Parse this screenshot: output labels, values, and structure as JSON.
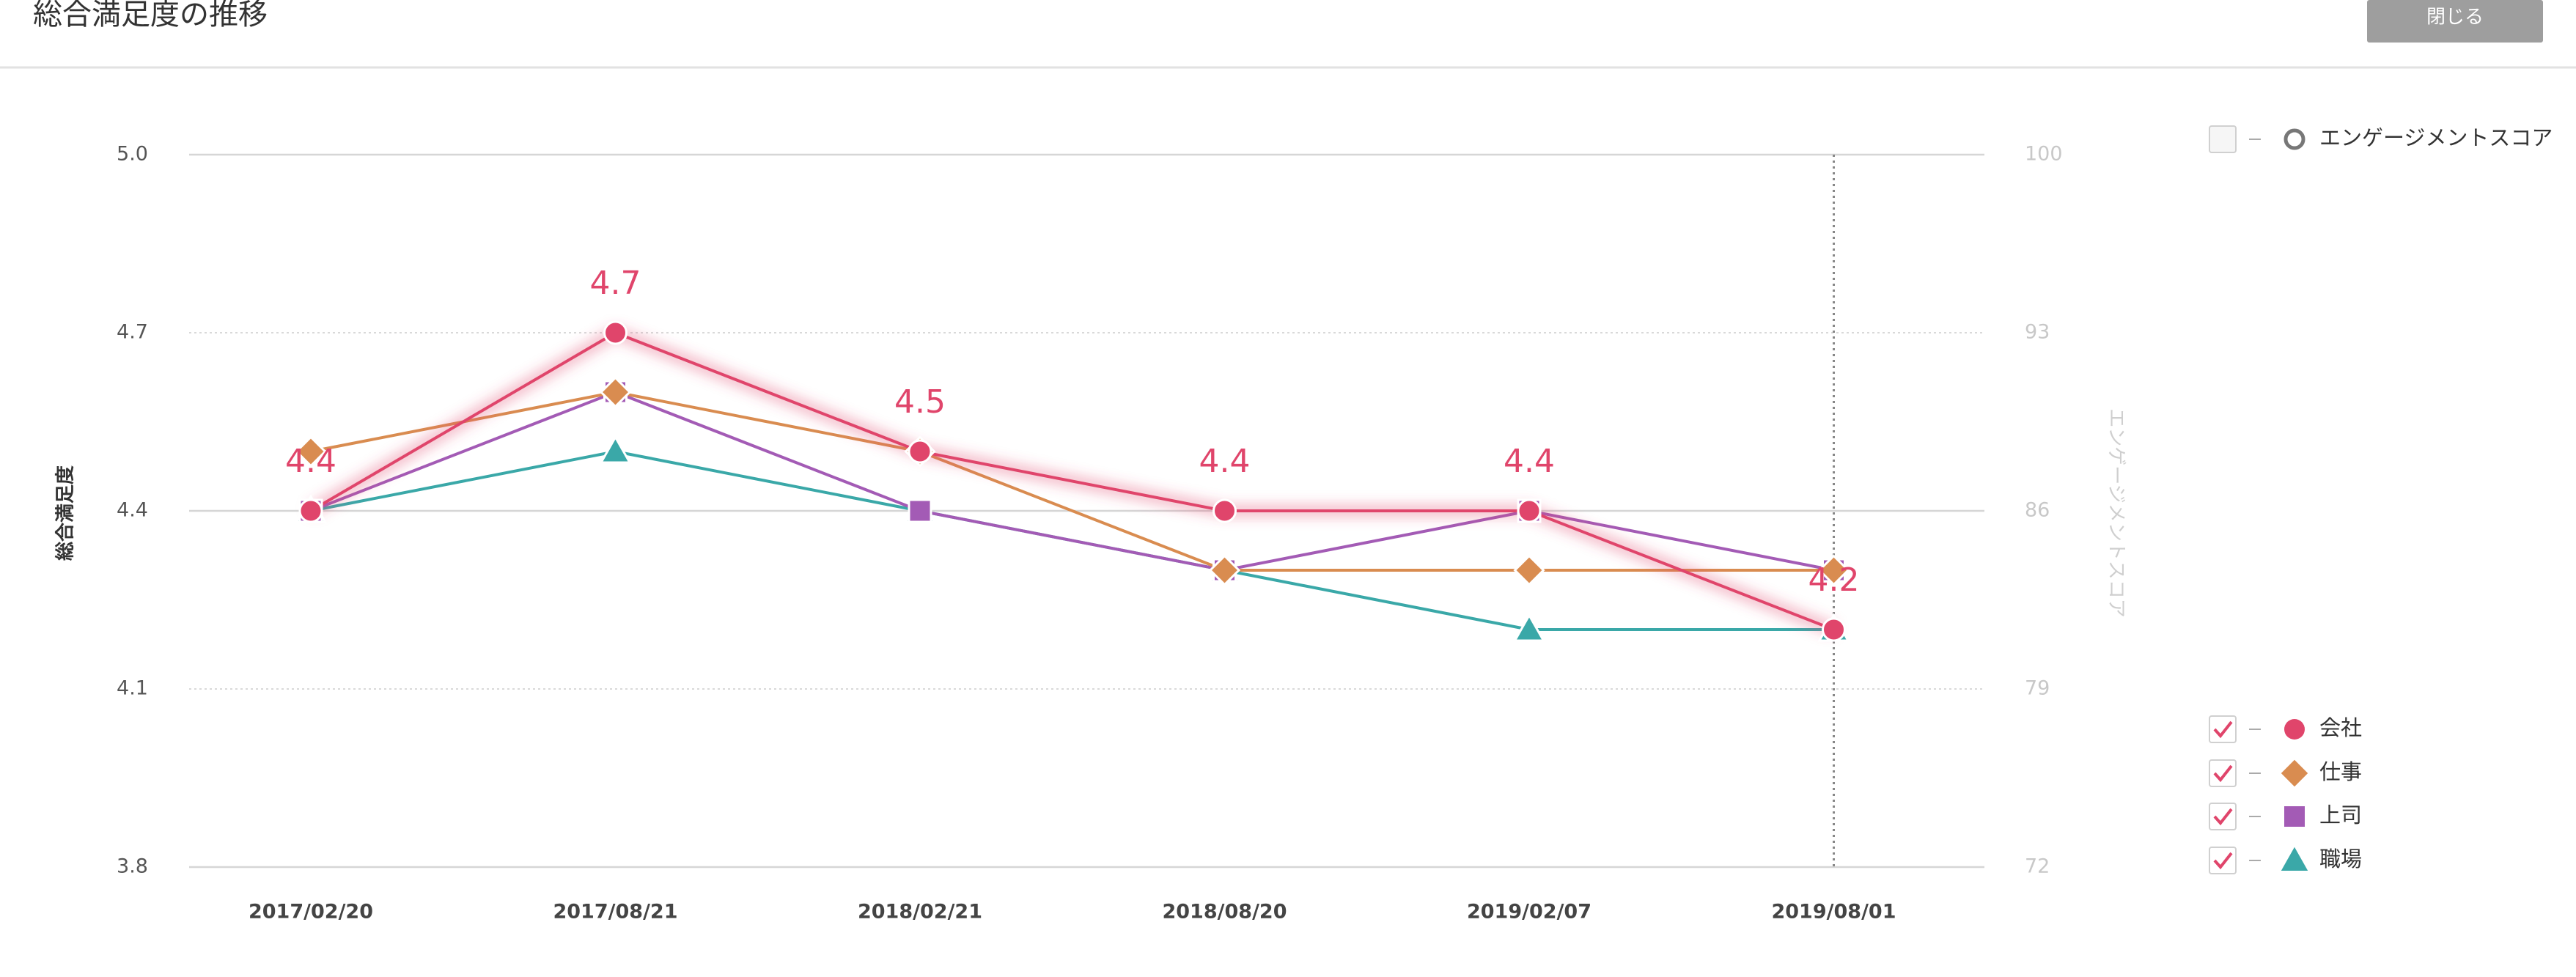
{
  "header": {
    "title": "総合満足度の推移",
    "close_button": "閉じる"
  },
  "chart_data": {
    "type": "line",
    "categories": [
      "2017/02/20",
      "2017/08/21",
      "2018/02/21",
      "2018/08/20",
      "2019/02/07",
      "2019/08/01"
    ],
    "ylim": [
      3.8,
      5
    ],
    "yticks": [
      3.8,
      4.1,
      4.4,
      4.7,
      {
        "value": 5,
        "label": "5.0"
      }
    ],
    "y2lim": [
      72,
      100
    ],
    "y2ticks": [
      72,
      79,
      86,
      93,
      100
    ],
    "ylabel": "総合満足度",
    "y2label": "エンゲージメントスコア",
    "grid": true,
    "series": [
      {
        "name": "エンゲージメントスコア",
        "color": "#777777",
        "marker": "ring",
        "axis": "y2",
        "visible": false,
        "values": [
          null,
          null,
          null,
          null,
          null,
          null
        ]
      },
      {
        "name": "会社",
        "color": "#e0456b",
        "marker": "circle",
        "visible": true,
        "data_labels": true,
        "values": [
          4.4,
          4.7,
          4.5,
          4.4,
          4.4,
          4.2
        ]
      },
      {
        "name": "仕事",
        "color": "#d98c50",
        "marker": "diamond",
        "visible": true,
        "values": [
          4.5,
          4.6,
          4.5,
          4.3,
          4.3,
          4.3
        ]
      },
      {
        "name": "上司",
        "color": "#a35bb5",
        "marker": "square",
        "visible": true,
        "values": [
          4.4,
          4.6,
          4.4,
          4.3,
          4.4,
          4.3
        ]
      },
      {
        "name": "職場",
        "color": "#3aa8a8",
        "marker": "triangle",
        "visible": true,
        "values": [
          4.4,
          4.5,
          4.4,
          4.3,
          4.2,
          4.2
        ]
      }
    ]
  }
}
